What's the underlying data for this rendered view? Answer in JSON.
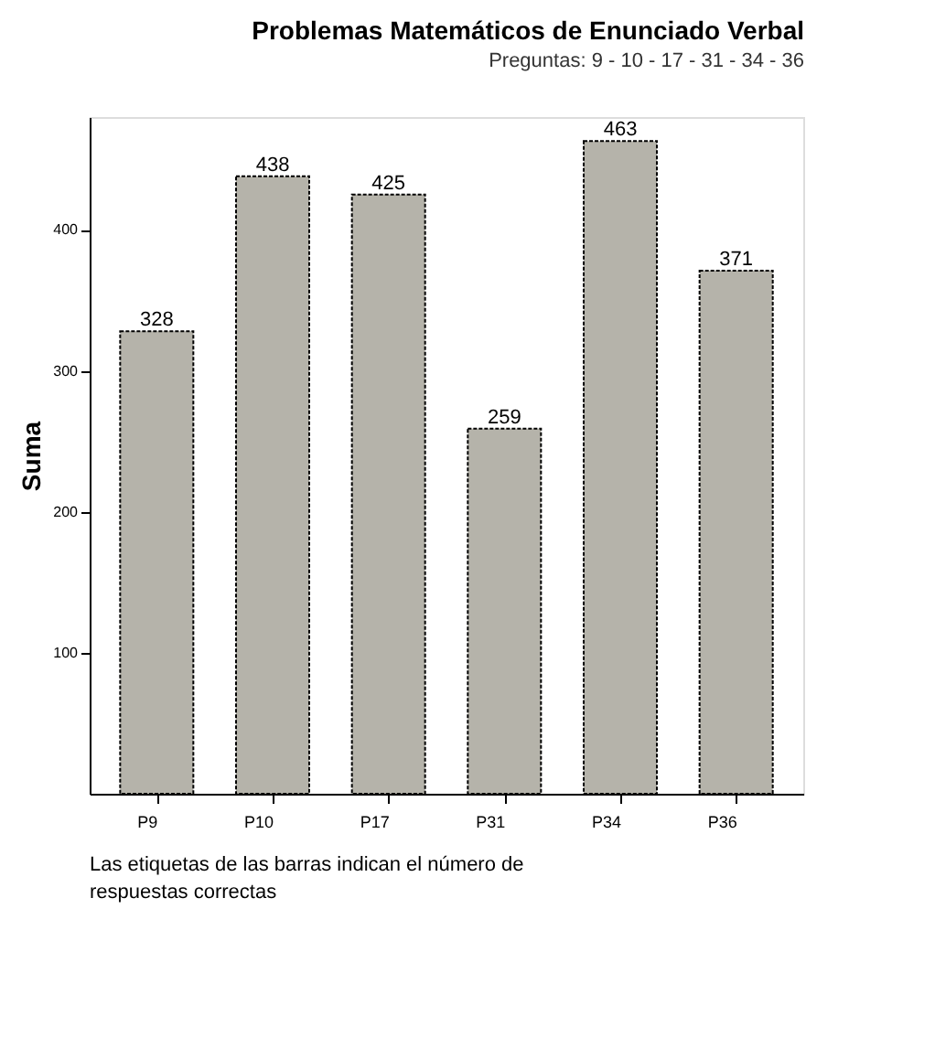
{
  "chart_data": {
    "type": "bar",
    "title": "Problemas Matemáticos de Enunciado Verbal",
    "subtitle": "Preguntas: 9 - 10 - 17 - 31 - 34 - 36",
    "ylabel": "Suma",
    "categories": [
      "P9",
      "P10",
      "P17",
      "P31",
      "P34",
      "P36"
    ],
    "values": [
      328,
      438,
      425,
      259,
      463,
      371
    ],
    "color": "#b5b3aa",
    "data_labels": true,
    "ylim": [
      0,
      480
    ],
    "yticks": [
      100,
      200,
      300,
      400
    ],
    "grid": false,
    "annotations": [
      "Las etiquetas de las barras indican el número de respuestas correctas"
    ]
  }
}
